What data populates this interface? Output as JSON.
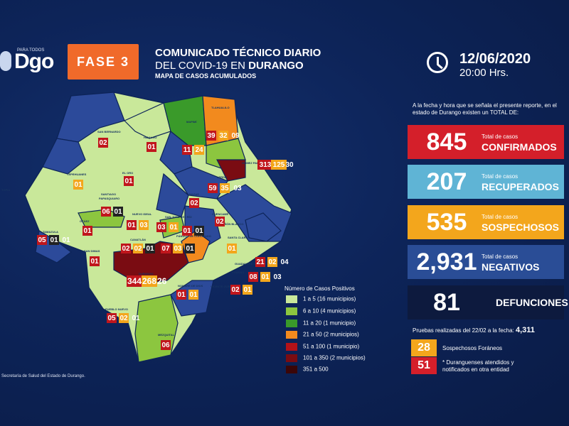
{
  "header": {
    "logo_small": "PARA TODOS",
    "logo_text": "Dgo",
    "phase": "FASE 3",
    "title_line1": "COMUNICADO TÉCNICO DIARIO",
    "title_line2_plain": "DEL COVID-19 EN ",
    "title_line2_bold": "DURANGO",
    "title_line3": "MAPA DE CASOS ACUMULADOS",
    "date": "12/06/2020",
    "time": "20:00 Hrs."
  },
  "summary": {
    "intro": "A la fecha y hora que se señala el presente reporte, en el estado de Durango existen un TOTAL DE:",
    "confirmed": {
      "value": "845",
      "sub": "Total de casos",
      "label": "CONFIRMADOS",
      "color": "#d41f2a"
    },
    "recovered": {
      "value": "207",
      "sub": "Total de casos",
      "label": "RECUPERADOS",
      "color": "#5fb4d5"
    },
    "suspected": {
      "value": "535",
      "sub": "Total de casos",
      "label": "SOSPECHOSOS",
      "color": "#f3a61c"
    },
    "negative": {
      "value": "2,931",
      "sub": "Total de casos",
      "label": "NEGATIVOS",
      "color": "#2a4d96"
    },
    "deaths": {
      "value": "81",
      "label": "DEFUNCIONES"
    },
    "tests_label": "Pruebas realizadas del 22/02 a la fecha:",
    "tests_value": "4,311",
    "foreign_suspected": {
      "value": "28",
      "label": "Sospechosos Foráneos"
    },
    "attended_elsewhere": {
      "value": "51",
      "label": "* Duranguenses atendidos y notificados en otra entidad"
    }
  },
  "legend": {
    "title": "Número de Casos Positivos",
    "items": [
      {
        "label": "1 a 5",
        "count": "(16 municipios)",
        "color": "#c9e89a"
      },
      {
        "label": "6 a 10",
        "count": "(4 municipios)",
        "color": "#8cc63f"
      },
      {
        "label": "11 a 20",
        "count": "(1 municipio)",
        "color": "#3a9a2a"
      },
      {
        "label": "21 a 50",
        "count": "(2 municipios)",
        "color": "#f28a1e"
      },
      {
        "label": "51 a 100",
        "count": "(1 municipio)",
        "color": "#b31218"
      },
      {
        "label": "101 a 350",
        "count": "(2 municipios)",
        "color": "#7a0c12"
      },
      {
        "label": "351 a 500",
        "count": "",
        "color": "#3b0608"
      }
    ]
  },
  "source": "Secretaría de Salud del Estado de Durango.",
  "municipalities": [
    {
      "name": "TLAHUALILO",
      "values": [
        "39",
        "32",
        "09"
      ]
    },
    {
      "name": "MAPIMÍ",
      "values": [
        "11",
        "24"
      ]
    },
    {
      "name": "GOMEZ PALACIO",
      "values": [
        "313",
        "125",
        "30"
      ]
    },
    {
      "name": "LERDO",
      "values": [
        "59",
        "35",
        "03"
      ]
    },
    {
      "name": "SAN BERNARDO",
      "values": [
        "02"
      ]
    },
    {
      "name": "HIDALGO",
      "values": [
        "01"
      ]
    },
    {
      "name": "TEPEHUANES",
      "values": [
        "01"
      ]
    },
    {
      "name": "EL ORO",
      "values": [
        "01"
      ]
    },
    {
      "name": "NAZAS",
      "values": [
        "02"
      ]
    },
    {
      "name": "CUENCAMÉ",
      "values": [
        "02"
      ]
    },
    {
      "name": "TOPIA",
      "values": []
    },
    {
      "name": "SANTIAGO PAPASQUIARO",
      "values": [
        "06",
        "01"
      ]
    },
    {
      "name": "NUEVO IDEAL",
      "values": [
        "01",
        "03"
      ]
    },
    {
      "name": "SAN JUAN DEL RÍO",
      "values": [
        "03",
        "01"
      ]
    },
    {
      "name": "PEÑÓN BLANCO",
      "values": [
        "01",
        "01"
      ]
    },
    {
      "name": "SANTA CLARA",
      "values": [
        "01"
      ]
    },
    {
      "name": "TAMAZULA",
      "values": [
        "05",
        "01",
        "01"
      ]
    },
    {
      "name": "OTÁEZ",
      "values": [
        "01"
      ]
    },
    {
      "name": "CANATLÁN",
      "values": [
        "02",
        "02",
        "01"
      ]
    },
    {
      "name": "PÁNUCO DE CORONADO",
      "values": [
        "07",
        "03",
        "01"
      ]
    },
    {
      "name": "GUADALUPE VICTORIA",
      "values": [
        "21",
        "02",
        "04"
      ]
    },
    {
      "name": "SAN DIMAS",
      "values": [
        "01"
      ]
    },
    {
      "name": "DURANGO",
      "values": [
        "344",
        "268",
        "26"
      ]
    },
    {
      "name": "POANAS",
      "values": [
        "08",
        "01",
        "03"
      ]
    },
    {
      "name": "NOMBRE DE DIOS",
      "values": [
        "01",
        "01"
      ]
    },
    {
      "name": "VICENTE GUERRERO",
      "values": [
        "02",
        "01"
      ]
    },
    {
      "name": "PUEBLO NUEVO",
      "values": [
        "05",
        "02",
        "01"
      ]
    },
    {
      "name": "MEZQUITAL",
      "values": [
        "06"
      ]
    }
  ]
}
